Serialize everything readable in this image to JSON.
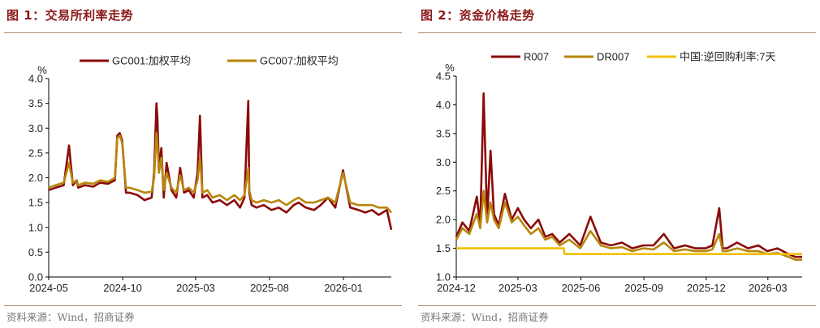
{
  "charts": [
    {
      "panel_title": "图 1：交易所利率走势",
      "source": "资料来源：Wind，招商证券"
    },
    {
      "panel_title": "图 2：资金价格走势",
      "source": "资料来源：Wind，招商证券"
    }
  ],
  "chart_data": [
    {
      "type": "line",
      "title": "图 1：交易所利率走势",
      "ylabel": "%",
      "xlabel": "",
      "ylim": [
        0.0,
        4.0
      ],
      "yticks": [
        "0.0",
        "0.5",
        "1.0",
        "1.5",
        "2.0",
        "2.5",
        "3.0",
        "3.5",
        "4.0"
      ],
      "xticks": [
        "2024-05",
        "2024-10",
        "2025-03",
        "2025-08",
        "2026-01"
      ],
      "xrange": [
        "2024-05-01",
        "2026-04-10"
      ],
      "legend_position": "top",
      "colors": {
        "GC001:加权平均": "#8b0a0a",
        "GC007:加权平均": "#b8860b"
      },
      "series": [
        {
          "name": "GC001:加权平均",
          "x": [
            "2024-05-01",
            "2024-05-15",
            "2024-06-01",
            "2024-06-12",
            "2024-06-20",
            "2024-06-28",
            "2024-07-01",
            "2024-07-15",
            "2024-08-01",
            "2024-08-15",
            "2024-09-01",
            "2024-09-15",
            "2024-09-20",
            "2024-09-25",
            "2024-09-30",
            "2024-10-08",
            "2024-10-15",
            "2024-11-01",
            "2024-11-15",
            "2024-11-30",
            "2024-12-05",
            "2024-12-10",
            "2024-12-12",
            "2024-12-15",
            "2024-12-20",
            "2024-12-25",
            "2024-12-31",
            "2025-01-10",
            "2025-01-20",
            "2025-01-28",
            "2025-02-05",
            "2025-02-15",
            "2025-02-25",
            "2025-03-05",
            "2025-03-10",
            "2025-03-15",
            "2025-03-25",
            "2025-04-05",
            "2025-04-20",
            "2025-05-05",
            "2025-05-20",
            "2025-06-01",
            "2025-06-10",
            "2025-06-18",
            "2025-06-20",
            "2025-06-25",
            "2025-07-05",
            "2025-07-20",
            "2025-08-05",
            "2025-08-20",
            "2025-09-05",
            "2025-09-20",
            "2025-09-30",
            "2025-10-15",
            "2025-11-01",
            "2025-11-15",
            "2025-11-30",
            "2025-12-15",
            "2025-12-31",
            "2026-01-15",
            "2026-02-01",
            "2026-02-15",
            "2026-03-01",
            "2026-03-15",
            "2026-04-01",
            "2026-04-10"
          ],
          "values": [
            1.75,
            1.8,
            1.85,
            2.65,
            1.85,
            1.95,
            1.8,
            1.85,
            1.82,
            1.9,
            1.88,
            1.95,
            2.85,
            2.9,
            2.75,
            1.7,
            1.7,
            1.65,
            1.55,
            1.6,
            2.1,
            3.5,
            3.2,
            2.2,
            2.6,
            1.6,
            2.3,
            1.75,
            1.6,
            2.2,
            1.7,
            1.75,
            1.6,
            2.1,
            3.25,
            1.6,
            1.65,
            1.5,
            1.55,
            1.45,
            1.55,
            1.4,
            1.6,
            3.55,
            1.7,
            1.45,
            1.4,
            1.45,
            1.35,
            1.4,
            1.3,
            1.45,
            1.5,
            1.4,
            1.35,
            1.45,
            1.6,
            1.4,
            2.15,
            1.4,
            1.35,
            1.3,
            1.35,
            1.25,
            1.35,
            0.95
          ]
        },
        {
          "name": "GC007:加权平均",
          "x": [
            "2024-05-01",
            "2024-05-15",
            "2024-06-01",
            "2024-06-12",
            "2024-06-20",
            "2024-06-28",
            "2024-07-01",
            "2024-07-15",
            "2024-08-01",
            "2024-08-15",
            "2024-09-01",
            "2024-09-15",
            "2024-09-20",
            "2024-09-25",
            "2024-09-30",
            "2024-10-08",
            "2024-10-15",
            "2024-11-01",
            "2024-11-15",
            "2024-11-30",
            "2024-12-05",
            "2024-12-10",
            "2024-12-12",
            "2024-12-15",
            "2024-12-20",
            "2024-12-25",
            "2024-12-31",
            "2025-01-10",
            "2025-01-20",
            "2025-01-28",
            "2025-02-05",
            "2025-02-15",
            "2025-02-25",
            "2025-03-05",
            "2025-03-10",
            "2025-03-15",
            "2025-03-25",
            "2025-04-05",
            "2025-04-20",
            "2025-05-05",
            "2025-05-20",
            "2025-06-01",
            "2025-06-10",
            "2025-06-18",
            "2025-06-20",
            "2025-06-25",
            "2025-07-05",
            "2025-07-20",
            "2025-08-05",
            "2025-08-20",
            "2025-09-05",
            "2025-09-20",
            "2025-09-30",
            "2025-10-15",
            "2025-11-01",
            "2025-11-15",
            "2025-11-30",
            "2025-12-15",
            "2025-12-31",
            "2026-01-15",
            "2026-02-01",
            "2026-02-15",
            "2026-03-01",
            "2026-03-15",
            "2026-04-01",
            "2026-04-10"
          ],
          "values": [
            1.8,
            1.85,
            1.9,
            2.3,
            1.9,
            1.95,
            1.85,
            1.9,
            1.88,
            1.95,
            1.92,
            2.0,
            2.8,
            2.85,
            2.7,
            1.8,
            1.8,
            1.75,
            1.7,
            1.72,
            2.0,
            2.9,
            2.7,
            2.1,
            2.4,
            1.75,
            2.1,
            1.8,
            1.7,
            2.05,
            1.75,
            1.8,
            1.7,
            1.95,
            2.4,
            1.7,
            1.75,
            1.6,
            1.65,
            1.55,
            1.65,
            1.55,
            1.65,
            2.2,
            1.75,
            1.55,
            1.5,
            1.55,
            1.5,
            1.55,
            1.45,
            1.55,
            1.6,
            1.5,
            1.5,
            1.55,
            1.6,
            1.5,
            2.1,
            1.5,
            1.45,
            1.45,
            1.45,
            1.4,
            1.4,
            1.3
          ]
        }
      ]
    },
    {
      "type": "line",
      "title": "图 2：资金价格走势",
      "ylabel": "%",
      "xlabel": "",
      "ylim": [
        1.0,
        4.5
      ],
      "yticks": [
        "1.0",
        "1.5",
        "2.0",
        "2.5",
        "3.0",
        "3.5",
        "4.0",
        "4.5"
      ],
      "xticks": [
        "2024-12",
        "2025-03",
        "2025-06",
        "2025-09",
        "2025-12",
        "2026-03"
      ],
      "xrange": [
        "2024-12-01",
        "2026-04-20"
      ],
      "legend_position": "top",
      "colors": {
        "R007": "#8b0a0a",
        "DR007": "#b8860b",
        "中国:逆回购利率:7天": "#f0c000"
      },
      "series": [
        {
          "name": "R007",
          "x": [
            "2024-12-01",
            "2024-12-10",
            "2024-12-20",
            "2024-12-31",
            "2025-01-05",
            "2025-01-10",
            "2025-01-15",
            "2025-01-20",
            "2025-01-25",
            "2025-02-01",
            "2025-02-10",
            "2025-02-20",
            "2025-03-01",
            "2025-03-10",
            "2025-03-20",
            "2025-03-31",
            "2025-04-10",
            "2025-04-20",
            "2025-05-01",
            "2025-05-15",
            "2025-05-31",
            "2025-06-15",
            "2025-06-30",
            "2025-07-15",
            "2025-07-31",
            "2025-08-15",
            "2025-08-31",
            "2025-09-15",
            "2025-09-30",
            "2025-10-15",
            "2025-10-31",
            "2025-11-15",
            "2025-11-30",
            "2025-12-10",
            "2025-12-20",
            "2025-12-25",
            "2025-12-31",
            "2026-01-15",
            "2026-01-31",
            "2026-02-15",
            "2026-02-28",
            "2026-03-15",
            "2026-03-31",
            "2026-04-10",
            "2026-04-20"
          ],
          "values": [
            1.7,
            1.95,
            1.8,
            2.4,
            1.9,
            4.2,
            2.0,
            3.2,
            2.1,
            1.9,
            2.45,
            2.0,
            2.2,
            2.0,
            1.85,
            2.0,
            1.7,
            1.75,
            1.6,
            1.75,
            1.55,
            2.05,
            1.6,
            1.55,
            1.6,
            1.5,
            1.55,
            1.55,
            1.75,
            1.5,
            1.55,
            1.5,
            1.5,
            1.55,
            2.2,
            1.5,
            1.5,
            1.6,
            1.5,
            1.55,
            1.45,
            1.5,
            1.4,
            1.35,
            1.35
          ]
        },
        {
          "name": "DR007",
          "x": [
            "2024-12-01",
            "2024-12-10",
            "2024-12-20",
            "2024-12-31",
            "2025-01-05",
            "2025-01-10",
            "2025-01-15",
            "2025-01-20",
            "2025-01-25",
            "2025-02-01",
            "2025-02-10",
            "2025-02-20",
            "2025-03-01",
            "2025-03-10",
            "2025-03-20",
            "2025-03-31",
            "2025-04-10",
            "2025-04-20",
            "2025-05-01",
            "2025-05-15",
            "2025-05-31",
            "2025-06-15",
            "2025-06-30",
            "2025-07-15",
            "2025-07-31",
            "2025-08-15",
            "2025-08-31",
            "2025-09-15",
            "2025-09-30",
            "2025-10-15",
            "2025-10-31",
            "2025-11-15",
            "2025-11-30",
            "2025-12-10",
            "2025-12-20",
            "2025-12-25",
            "2025-12-31",
            "2026-01-15",
            "2026-01-31",
            "2026-02-15",
            "2026-02-28",
            "2026-03-15",
            "2026-03-31",
            "2026-04-10",
            "2026-04-20"
          ],
          "values": [
            1.65,
            1.85,
            1.75,
            2.1,
            1.85,
            2.5,
            1.95,
            2.3,
            2.0,
            1.85,
            2.3,
            1.95,
            2.05,
            1.9,
            1.75,
            1.85,
            1.65,
            1.7,
            1.55,
            1.65,
            1.5,
            1.8,
            1.55,
            1.5,
            1.52,
            1.45,
            1.5,
            1.48,
            1.6,
            1.45,
            1.48,
            1.45,
            1.45,
            1.48,
            1.75,
            1.45,
            1.45,
            1.5,
            1.45,
            1.45,
            1.4,
            1.42,
            1.35,
            1.3,
            1.3
          ]
        },
        {
          "name": "中国:逆回购利率:7天",
          "x": [
            "2024-12-01",
            "2025-05-07",
            "2025-05-08",
            "2026-04-20"
          ],
          "values": [
            1.5,
            1.5,
            1.4,
            1.4
          ]
        }
      ]
    }
  ]
}
